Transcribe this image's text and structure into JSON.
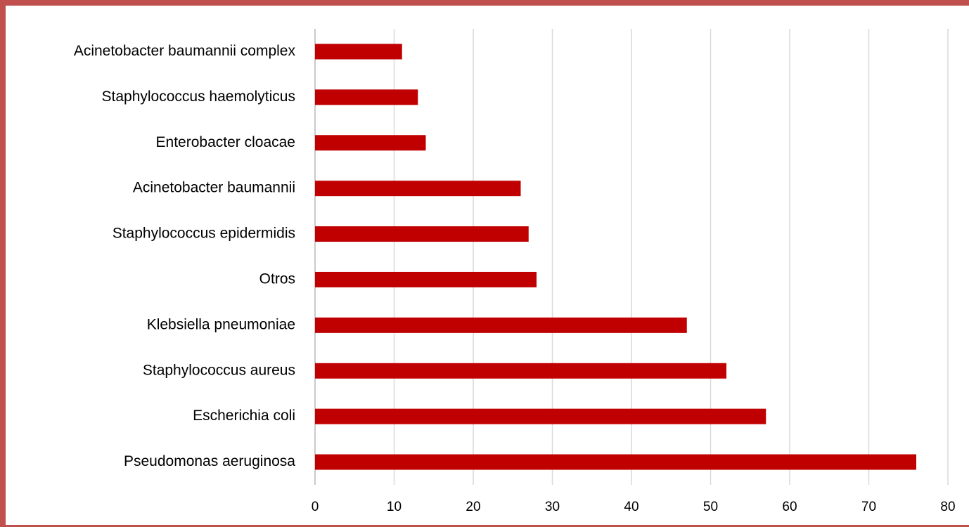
{
  "chart_data": {
    "type": "barh",
    "categories": [
      "Acinetobacter baumannii complex",
      "Staphylococcus haemolyticus",
      "Enterobacter cloacae",
      "Acinetobacter baumannii",
      "Staphylococcus epidermidis",
      "Otros",
      "Klebsiella pneumoniae",
      "Staphylococcus aureus",
      "Escherichia coli",
      "Pseudomonas aeruginosa"
    ],
    "values": [
      11,
      13,
      14,
      26,
      27,
      28,
      47,
      52,
      57,
      76
    ],
    "color": "#c00000",
    "xlim": [
      0,
      80
    ],
    "xticks": [
      0,
      10,
      20,
      30,
      40,
      50,
      60,
      70,
      80
    ],
    "grid": true
  }
}
